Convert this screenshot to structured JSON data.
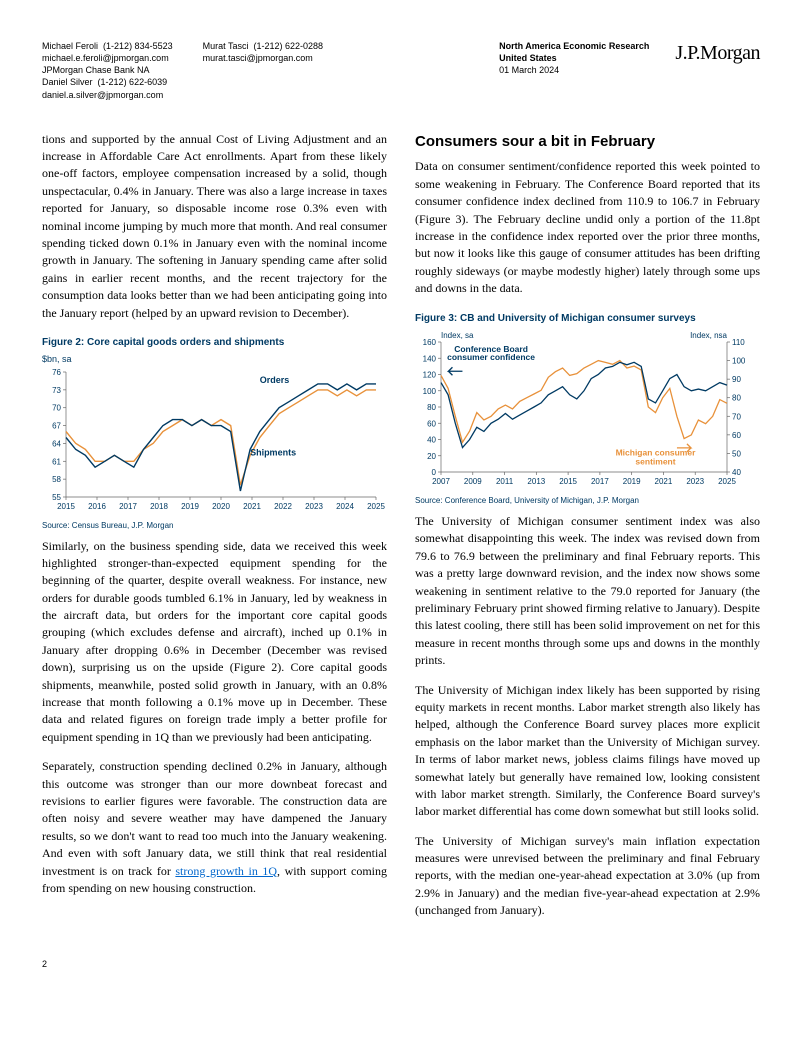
{
  "header": {
    "contacts": [
      {
        "name": "Michael Feroli",
        "phone": "(1-212) 834-5523",
        "email": "michael.e.feroli@jpmorgan.com",
        "org": "JPMorgan Chase Bank NA"
      },
      {
        "name": "Daniel Silver",
        "phone": "(1-212) 622-6039",
        "email": "daniel.a.silver@jpmorgan.com"
      },
      {
        "name": "Murat Tasci",
        "phone": "(1-212) 622-0288",
        "email": "murat.tasci@jpmorgan.com"
      }
    ],
    "report_type": "North America Economic Research",
    "region": "United States",
    "date": "01 March 2024",
    "logo": "J.P.Morgan"
  },
  "left_col": {
    "p1": "tions and supported by the annual Cost of Living Adjustment and an increase in Affordable Care Act enrollments. Apart from these likely one-off factors, employee compensation increased by a solid, though unspectacular, 0.4% in January. There was also a large increase in taxes reported for January, so disposable income rose 0.3% even with nominal income jumping by much more that month. And real consumer spending ticked down 0.1% in January even with the nominal income growth in January. The softening in January spending came after solid gains in earlier recent months, and the recent trajectory for the consumption data looks better than we had been anticipating going into the January report (helped by an upward revision to December).",
    "p2": "Similarly, on the business spending side, data we received this week highlighted stronger-than-expected equipment spending for the beginning of the quarter, despite overall weakness. For instance, new orders for durable goods tumbled 6.1% in January, led by weakness in the aircraft data, but orders for the important core capital goods grouping (which excludes defense and aircraft), inched up 0.1% in January after dropping 0.6% in December (December was revised down), surprising us on the upside (Figure 2). Core capital goods shipments, meanwhile, posted solid growth in January, with an 0.8% increase that month following a 0.1% move up in December. These data and related figures on foreign trade imply a better profile for equipment spending in 1Q than we previously had been anticipating.",
    "p3_pre": "Separately, construction spending declined 0.2% in January, although this outcome was stronger than our more downbeat forecast and revisions to earlier figures were favorable. The construction data are often noisy and severe weather may have dampened the January results, so we don't want to read too much into the January weakening. And even with soft January data, we still think that real residential investment is on track for ",
    "p3_link": "strong growth in 1Q",
    "p3_post": ", with support coming from spending on new housing construction."
  },
  "chart2": {
    "title": "Figure 2: Core capital goods orders and shipments",
    "ylabel": "$bn, sa",
    "source": "Source: Census Bureau, J.P. Morgan",
    "y_ticks": [
      55,
      58,
      61,
      64,
      67,
      70,
      73,
      76
    ],
    "x_ticks": [
      "2015",
      "2016",
      "2017",
      "2018",
      "2019",
      "2020",
      "2021",
      "2022",
      "2023",
      "2024",
      "2025"
    ],
    "colors": {
      "orders": "#003a63",
      "shipments": "#e8913a",
      "axis": "#666666",
      "grid": "#d0d0d0",
      "text": "#003a63"
    },
    "labels": {
      "orders": "Orders",
      "shipments": "Shipments"
    },
    "series": {
      "orders": [
        65,
        63,
        62,
        60,
        61,
        62,
        61,
        60,
        63,
        65,
        67,
        68,
        68,
        67,
        68,
        67,
        67,
        66,
        56,
        63,
        66,
        68,
        70,
        71,
        72,
        73,
        74,
        74,
        73,
        74,
        73,
        74,
        74
      ],
      "shipments": [
        66,
        64,
        63,
        61,
        61,
        62,
        61,
        61,
        63,
        64,
        66,
        67,
        68,
        67,
        68,
        67,
        68,
        67,
        57,
        62,
        65,
        67,
        69,
        70,
        71,
        72,
        73,
        73,
        72,
        73,
        72,
        73,
        73
      ]
    }
  },
  "right_col": {
    "section_title": "Consumers sour a bit in February",
    "p1": "Data on consumer sentiment/confidence reported this week pointed to some weakening in February. The Conference Board reported that its consumer confidence index declined from 110.9 to 106.7 in February (Figure 3). The February decline undid only a portion of the 11.8pt increase in the confidence index reported over the prior three months, but now it looks like this gauge of consumer attitudes has been drifting roughly sideways (or maybe modestly higher) lately through some ups and downs in the data.",
    "p2": "The University of Michigan consumer sentiment index was also somewhat disappointing this week. The index was revised down from 79.6 to 76.9 between the preliminary and final February reports. This was a pretty large downward revision, and the index now shows some weakening in sentiment relative to the 79.0 reported for January (the preliminary February print showed firming relative to January). Despite this latest cooling, there still has been solid improvement on net for this measure in recent months through some ups and downs in the monthly prints.",
    "p3": "The University of Michigan index likely has been supported by rising equity markets in recent months. Labor market strength also likely has helped, although the Conference Board survey places more explicit emphasis on the labor market than the University of Michigan survey. In terms of labor market news, jobless claims filings have moved up somewhat lately but generally have remained low, looking consistent with labor market strength. Similarly, the Conference Board survey's labor market differential has come down somewhat but still looks solid.",
    "p4": "The University of Michigan survey's main inflation expectation measures were unrevised between the preliminary and final February reports, with the median one-year-ahead expectation at 3.0% (up from 2.9% in January) and the median five-year-ahead expectation at 2.9% (unchanged from January)."
  },
  "chart3": {
    "title": "Figure 3: CB and University of Michigan consumer surveys",
    "ylabel_left": "Index, sa",
    "ylabel_right": "Index, nsa",
    "source": "Source: Conference Board, University of Michigan, J.P. Morgan",
    "y_left_ticks": [
      0,
      20,
      40,
      60,
      80,
      100,
      120,
      140,
      160
    ],
    "y_right_ticks": [
      40,
      50,
      60,
      70,
      80,
      90,
      100,
      110
    ],
    "x_ticks": [
      "2007",
      "2009",
      "2011",
      "2013",
      "2015",
      "2017",
      "2019",
      "2021",
      "2023",
      "2025"
    ],
    "colors": {
      "cb": "#003a63",
      "um": "#e8913a",
      "axis": "#666666",
      "grid": "#d0d0d0",
      "text": "#003a63"
    },
    "labels": {
      "cb": "Conference Board consumer confidence",
      "um": "Michigan consumer sentiment"
    },
    "series": {
      "cb": [
        110,
        95,
        60,
        30,
        40,
        55,
        50,
        60,
        65,
        72,
        65,
        70,
        75,
        80,
        85,
        95,
        100,
        105,
        95,
        90,
        100,
        115,
        120,
        128,
        130,
        135,
        132,
        135,
        130,
        90,
        85,
        100,
        115,
        120,
        105,
        100,
        102,
        100,
        105,
        110,
        107
      ],
      "um": [
        92,
        85,
        70,
        56,
        62,
        72,
        68,
        70,
        74,
        76,
        74,
        78,
        80,
        82,
        84,
        91,
        94,
        96,
        92,
        93,
        96,
        98,
        100,
        99,
        98,
        100,
        96,
        97,
        95,
        75,
        72,
        80,
        85,
        70,
        58,
        60,
        68,
        66,
        70,
        79,
        77
      ]
    }
  },
  "page_number": "2"
}
